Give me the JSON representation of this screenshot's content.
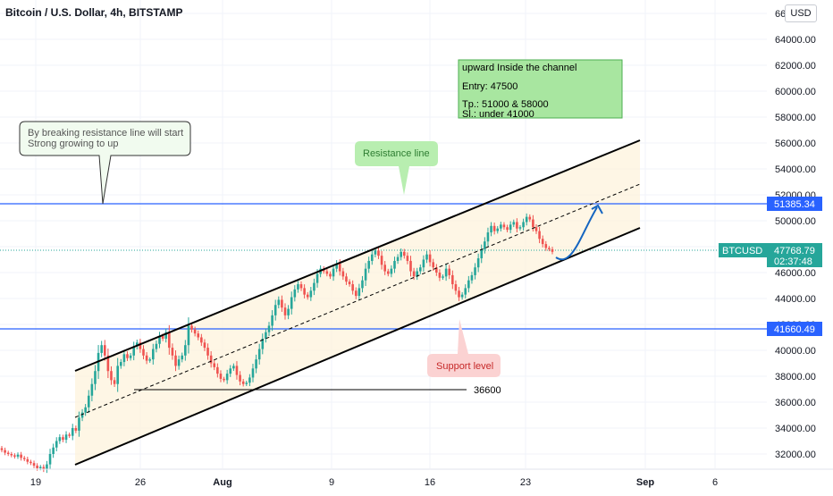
{
  "header": {
    "title": "Bitcoin / U.S. Dollar, 4h, BITSTAMP",
    "currency_button": "USD"
  },
  "colors": {
    "up": "#26a69a",
    "down": "#ef5350",
    "level_line": "#2962ff",
    "channel": "#000000",
    "channel_fill": "#fdf3dc",
    "arrow": "#1565c0"
  },
  "chart_data": {
    "type": "candlestick",
    "title": "Bitcoin / U.S. Dollar, 4h, BITSTAMP",
    "x_ticks": [
      "19",
      "26",
      "Aug",
      "9",
      "16",
      "23",
      "Sep",
      "6"
    ],
    "y_ticks": [
      "32000.00",
      "34000.00",
      "36000.00",
      "38000.00",
      "40000.00",
      "42000.00",
      "44000.00",
      "46000.00",
      "48000.00",
      "50000.00",
      "52000.00",
      "54000.00",
      "56000.00",
      "58000.00",
      "60000.00",
      "62000.00",
      "64000.00",
      "66000.00"
    ],
    "ylim": [
      30800,
      67000
    ],
    "candles_close": [
      32300,
      32100,
      32000,
      31900,
      31800,
      31950,
      31700,
      31600,
      31400,
      31300,
      31100,
      30900,
      31000,
      30800,
      31200,
      32000,
      32500,
      33000,
      33300,
      33100,
      33500,
      33400,
      34000,
      33800,
      34800,
      35200,
      35600,
      36500,
      37400,
      38400,
      39800,
      40400,
      39600,
      38400,
      37700,
      37400,
      38800,
      39100,
      39700,
      39400,
      39600,
      40300,
      40600,
      40100,
      39600,
      39200,
      39300,
      40100,
      40500,
      41100,
      40900,
      41400,
      40200,
      39600,
      38800,
      39300,
      39600,
      40400,
      41900,
      41600,
      41300,
      41000,
      40600,
      40200,
      39600,
      39000,
      38700,
      38200,
      37800,
      37700,
      38200,
      38600,
      38800,
      38100,
      37600,
      37400,
      37500,
      37900,
      38600,
      39300,
      40100,
      40900,
      41400,
      41900,
      42700,
      43500,
      43900,
      43300,
      42700,
      43200,
      44100,
      44700,
      45100,
      44800,
      44300,
      44100,
      44600,
      45200,
      45900,
      46300,
      46100,
      45900,
      45700,
      46300,
      46700,
      46100,
      45700,
      45300,
      45100,
      44600,
      44200,
      44800,
      45400,
      46300,
      46900,
      47400,
      47700,
      47300,
      46600,
      46100,
      45900,
      46300,
      46900,
      47200,
      47600,
      47300,
      46900,
      46100,
      45700,
      46100,
      46400,
      47000,
      47400,
      46800,
      46400,
      46000,
      45600,
      45700,
      46300,
      45800,
      45100,
      44600,
      44100,
      44300,
      44800,
      45400,
      45800,
      46400,
      47100,
      47800,
      48400,
      49100,
      49600,
      49200,
      49400,
      49700,
      49500,
      49300,
      49700,
      49900,
      49400,
      49500,
      49900,
      50300,
      50100,
      49500,
      49200,
      48600,
      48200,
      47900,
      47800,
      47600
    ]
  },
  "levels": [
    {
      "label": "51385.34",
      "value": 51385.34
    },
    {
      "label": "41660.49",
      "value": 41660.49
    }
  ],
  "last_price": {
    "symbol": "BTCUSD",
    "price": "47768.79",
    "countdown": "02:37:48",
    "value": 47768.79
  },
  "annotations": {
    "info_box": {
      "line1": "upward Inside the channel",
      "line2": "Entry: 47500",
      "line3": "Tp.: 51000 & 58000",
      "line4": "Sl.: under 41000"
    },
    "callout": {
      "line1": "By breaking resistance line will start",
      "line2": "Strong growing to up"
    },
    "resistance_label": "Resistance line",
    "support_label": "Support level",
    "level_36600": "36600"
  }
}
